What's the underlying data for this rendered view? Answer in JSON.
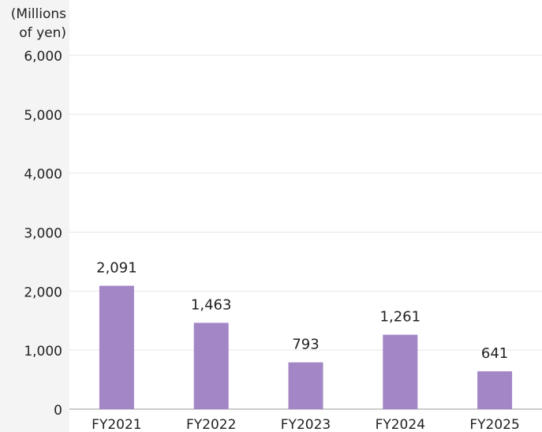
{
  "chart_data": {
    "type": "bar",
    "ylabel": [
      "(Millions",
      "of yen)"
    ],
    "categories": [
      "FY2021",
      "FY2022",
      "FY2023",
      "FY2024",
      "FY2025"
    ],
    "values": [
      2091,
      1463,
      793,
      1261,
      641
    ],
    "value_labels": [
      "2,091",
      "1,463",
      "793",
      "1,261",
      "641"
    ],
    "color": "#a386c6",
    "ylim": [
      0,
      6000
    ],
    "yticks": [
      0,
      {
        "value": 1000,
        "label": "1,000"
      },
      {
        "value": 2000,
        "label": "2,000"
      },
      {
        "value": 3000,
        "label": "3,000"
      },
      {
        "value": 4000,
        "label": "4,000"
      },
      {
        "value": 5000,
        "label": "5,000"
      },
      {
        "value": 6000,
        "label": "6,000"
      }
    ],
    "grid": true
  }
}
